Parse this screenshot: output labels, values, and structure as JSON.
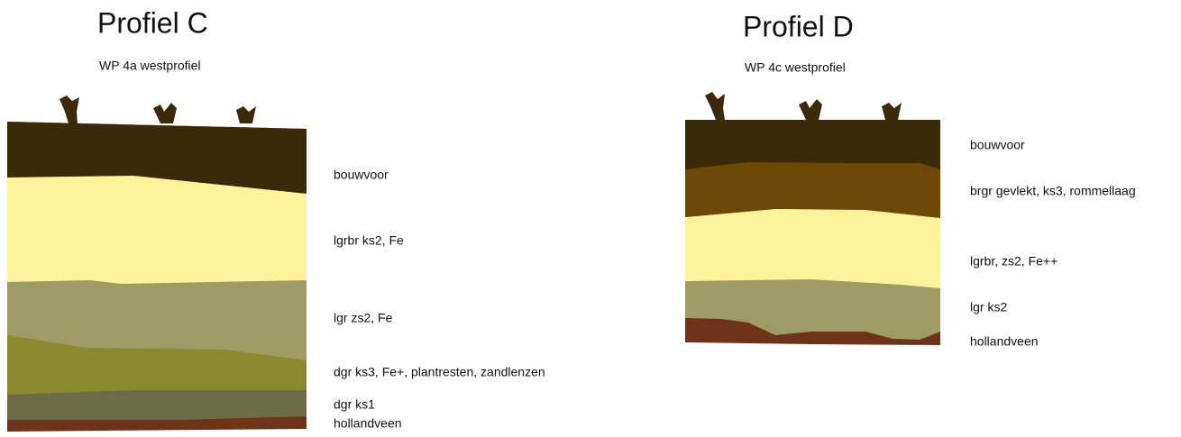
{
  "profiles": [
    {
      "title": "Profiel C",
      "subtitle": "WP 4a westprofiel",
      "layers": [
        "bouwvoor",
        "lgrbr ks2, Fe",
        "lgr zs2, Fe",
        "dgr ks3, Fe+, plantresten, zandlenzen",
        "dgr ks1",
        "hollandveen"
      ]
    },
    {
      "title": "Profiel D",
      "subtitle": "WP 4c westprofiel",
      "layers": [
        "bouwvoor",
        "brgr gevlekt, ks3, rommellaag",
        "lgrbr, zs2, Fe++",
        "lgr ks2",
        "hollandveen"
      ]
    }
  ]
}
